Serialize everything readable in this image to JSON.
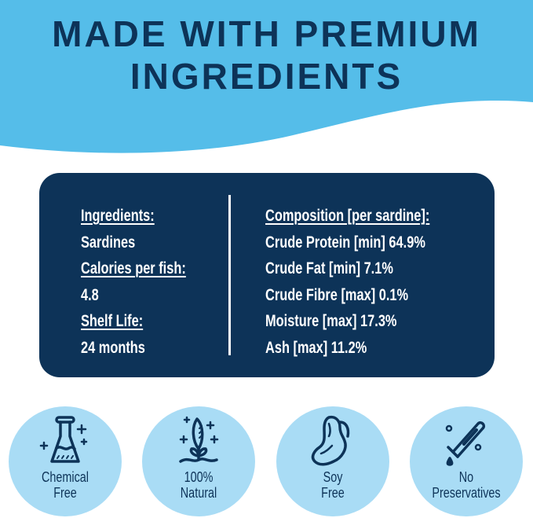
{
  "header": {
    "title_line1": "Made with Premium",
    "title_line2": "Ingredients"
  },
  "colors": {
    "navy": "#0d3358",
    "sky_blue": "#55bde9",
    "badge_blue": "#a9dcf5"
  },
  "info_panel": {
    "left": [
      {
        "text": "Ingredients:",
        "underlined": true
      },
      {
        "text": "Sardines",
        "underlined": false
      },
      {
        "text": "Calories per fish:",
        "underlined": true
      },
      {
        "text": "4.8",
        "underlined": false
      },
      {
        "text": "Shelf Life:",
        "underlined": true
      },
      {
        "text": "24 months",
        "underlined": false
      }
    ],
    "right": [
      {
        "text": "Composition [per sardine]:",
        "underlined": true
      },
      {
        "text": "Crude Protein [min] 64.9%",
        "underlined": false
      },
      {
        "text": "Crude Fat [min] 7.1%",
        "underlined": false
      },
      {
        "text": "Crude Fibre [max] 0.1%",
        "underlined": false
      },
      {
        "text": "Moisture [max] 17.3%",
        "underlined": false
      },
      {
        "text": "Ash [max] 11.2%",
        "underlined": false
      }
    ]
  },
  "badges": [
    {
      "icon": "flask-icon",
      "line1": "Chemical",
      "line2": "Free"
    },
    {
      "icon": "sprout-icon",
      "line1": "100%",
      "line2": "Natural"
    },
    {
      "icon": "soybean-icon",
      "line1": "Soy",
      "line2": "Free"
    },
    {
      "icon": "test-tube-icon",
      "line1": "No",
      "line2": "Preservatives"
    }
  ]
}
